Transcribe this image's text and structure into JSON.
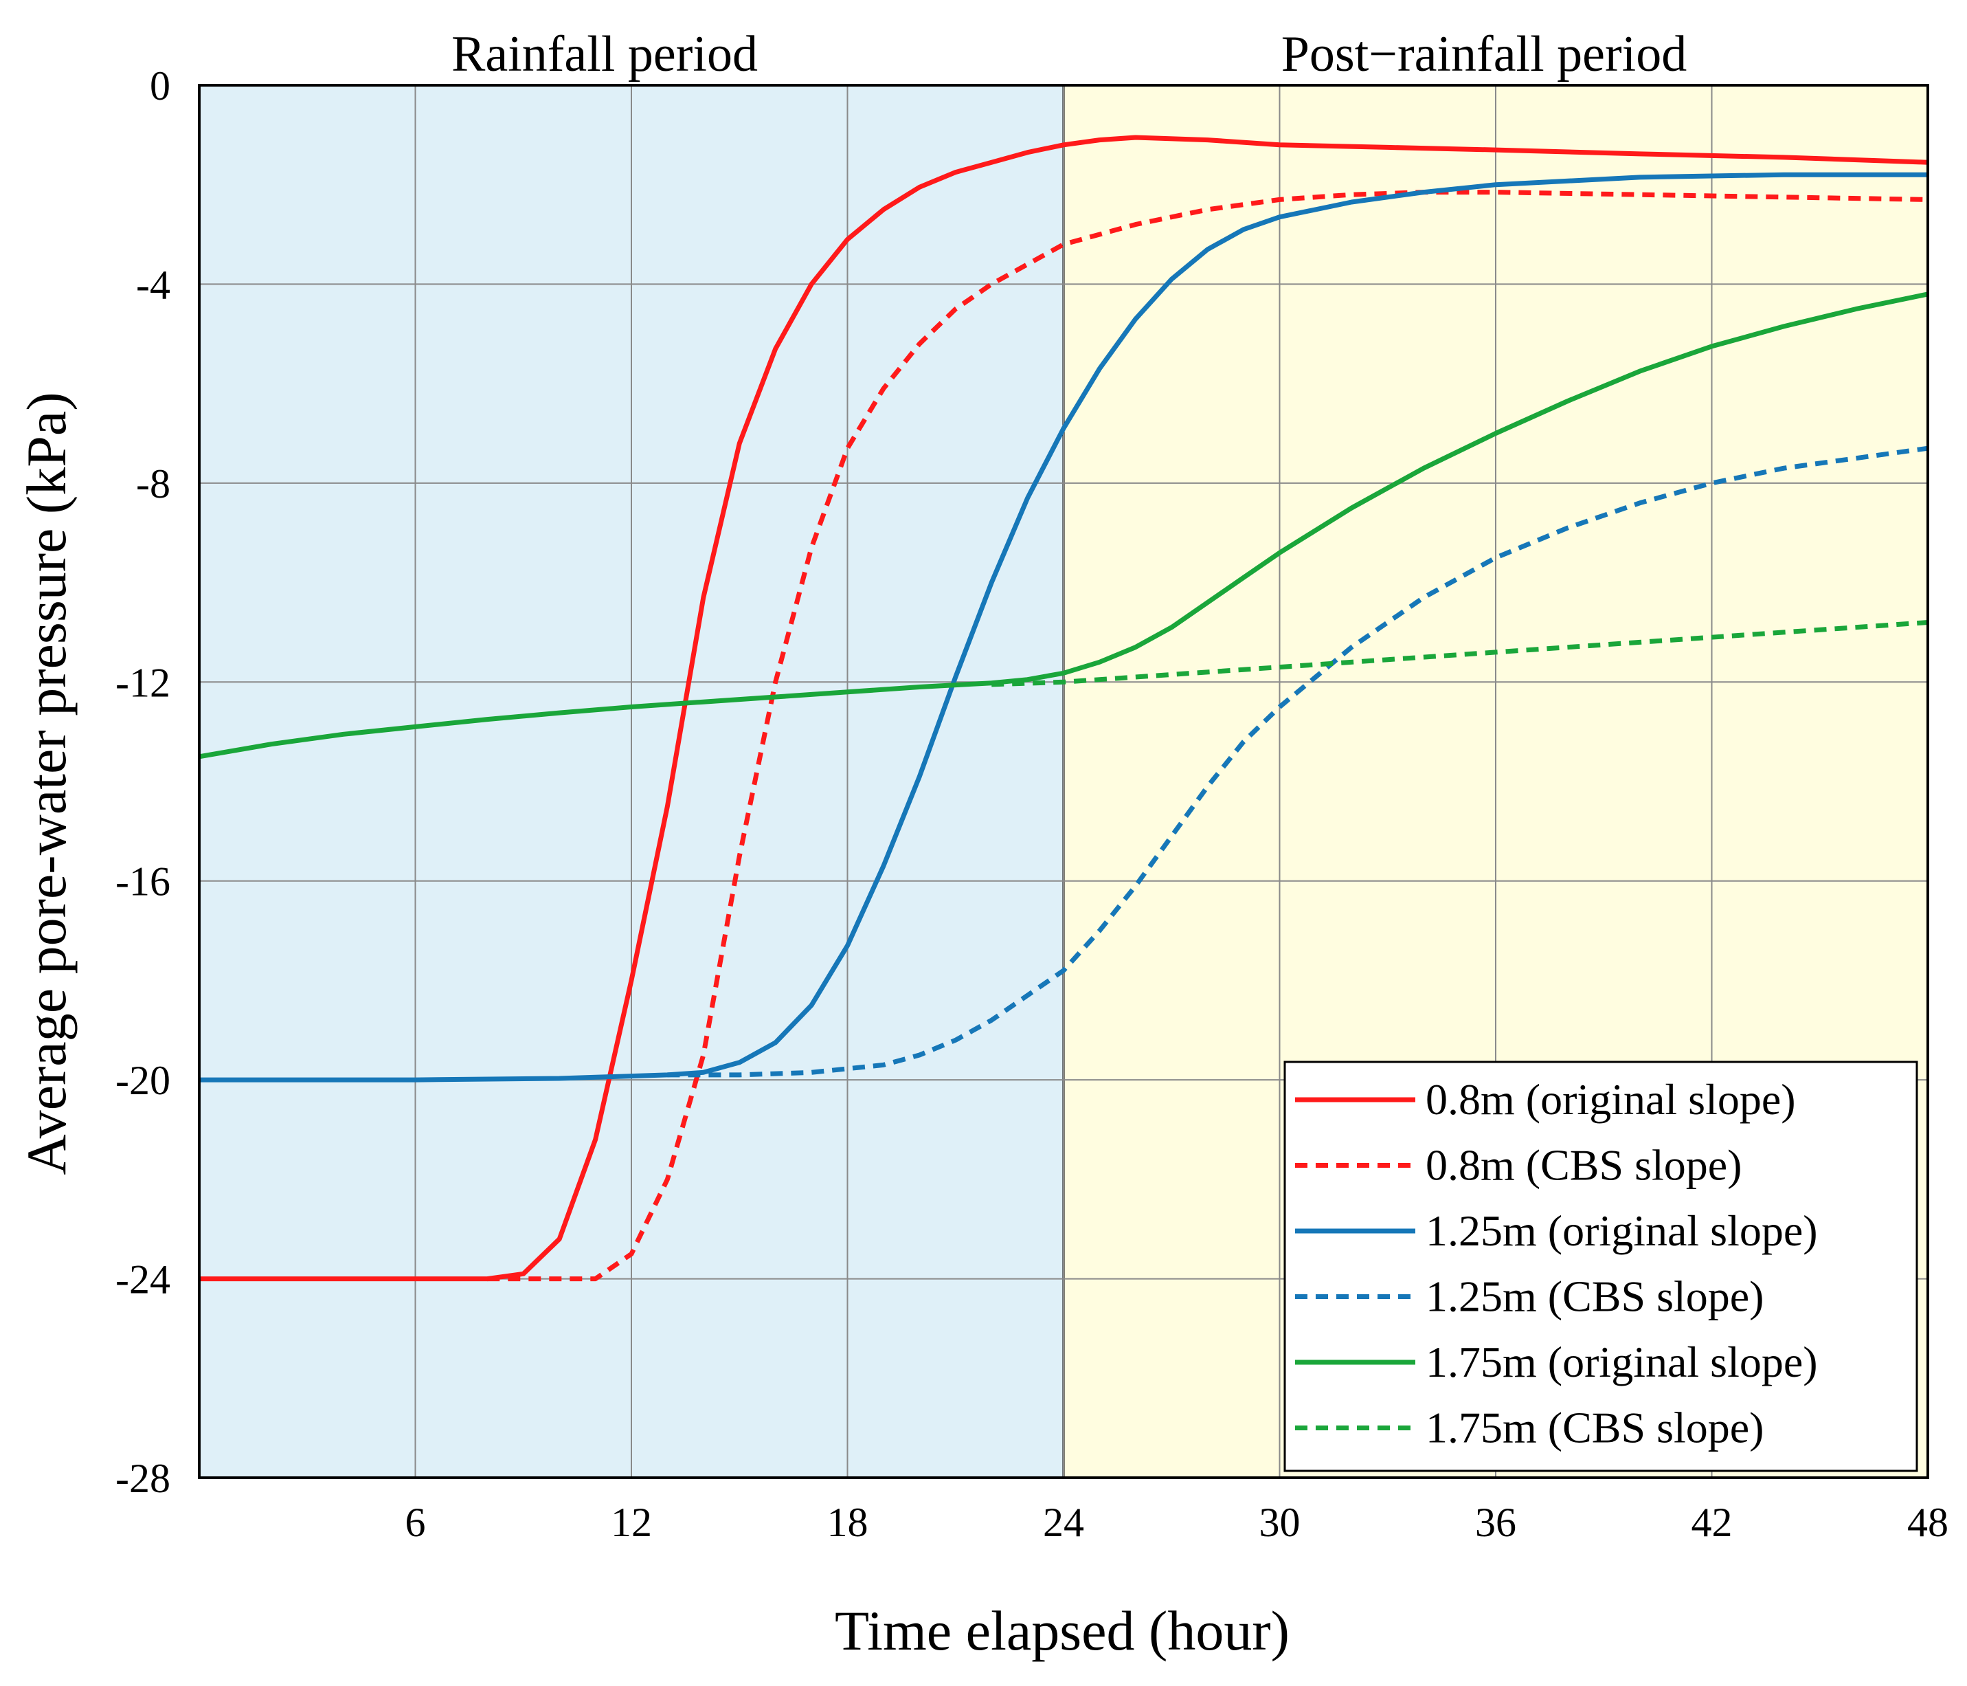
{
  "chart_data": {
    "type": "line",
    "xlabel": "Time elapsed (hour)",
    "ylabel": "Average pore-water pressure (kPa)",
    "xlim": [
      0,
      48
    ],
    "ylim": [
      -28,
      0
    ],
    "x_ticks": [
      6,
      12,
      18,
      24,
      30,
      36,
      42,
      48
    ],
    "y_ticks": [
      0,
      -4,
      -8,
      -12,
      -16,
      -20,
      -24,
      -28
    ],
    "grid": true,
    "legend_position": "bottom-right",
    "periods": [
      {
        "name": "rainfall",
        "label": "Rainfall period",
        "from": 0,
        "to": 24,
        "color": "#dff0f8"
      },
      {
        "name": "post-rainfall",
        "label": "Post−rainfall period",
        "from": 24,
        "to": 48,
        "color": "#fffde0"
      }
    ],
    "series": [
      {
        "name": "0.8m (original slope)",
        "color": "#ff1a1a",
        "dashed": false,
        "x": [
          0,
          7,
          8,
          9,
          10,
          11,
          12,
          13,
          14,
          15,
          16,
          17,
          18,
          19,
          20,
          21,
          22,
          23,
          24,
          25,
          26,
          28,
          30,
          33,
          36,
          40,
          44,
          48
        ],
        "y": [
          -24,
          -24,
          -24,
          -23.9,
          -23.2,
          -21.2,
          -18,
          -14.5,
          -10.3,
          -7.2,
          -5.3,
          -4,
          -3.1,
          -2.5,
          -2.05,
          -1.75,
          -1.55,
          -1.35,
          -1.2,
          -1.1,
          -1.05,
          -1.1,
          -1.2,
          -1.25,
          -1.3,
          -1.38,
          -1.45,
          -1.55
        ]
      },
      {
        "name": "0.8m (CBS slope)",
        "color": "#ff1a1a",
        "dashed": true,
        "x": [
          8,
          9,
          10,
          11,
          12,
          13,
          14,
          15,
          16,
          17,
          18,
          19,
          20,
          21,
          22,
          23,
          24,
          26,
          28,
          30,
          32,
          34,
          36,
          40,
          44,
          48
        ],
        "y": [
          -24,
          -24,
          -24,
          -24,
          -23.5,
          -22,
          -19.5,
          -15.5,
          -12,
          -9.3,
          -7.3,
          -6.1,
          -5.2,
          -4.5,
          -4,
          -3.6,
          -3.2,
          -2.8,
          -2.5,
          -2.3,
          -2.2,
          -2.15,
          -2.15,
          -2.2,
          -2.25,
          -2.3
        ]
      },
      {
        "name": "1.25m (original slope)",
        "color": "#1677b8",
        "dashed": false,
        "x": [
          0,
          6,
          10,
          13,
          14,
          15,
          16,
          17,
          18,
          19,
          20,
          21,
          22,
          23,
          24,
          25,
          26,
          27,
          28,
          29,
          30,
          32,
          34,
          36,
          40,
          44,
          48
        ],
        "y": [
          -20,
          -20,
          -19.97,
          -19.9,
          -19.85,
          -19.65,
          -19.25,
          -18.5,
          -17.3,
          -15.7,
          -13.9,
          -11.9,
          -10,
          -8.3,
          -6.9,
          -5.7,
          -4.7,
          -3.9,
          -3.3,
          -2.9,
          -2.65,
          -2.35,
          -2.15,
          -2,
          -1.85,
          -1.8,
          -1.8
        ]
      },
      {
        "name": "1.25m (CBS slope)",
        "color": "#1677b8",
        "dashed": true,
        "x": [
          13,
          15,
          17,
          19,
          20,
          21,
          22,
          23,
          24,
          25,
          26,
          27,
          28,
          29,
          30,
          31,
          32,
          33,
          34,
          36,
          38,
          40,
          42,
          44,
          46,
          48
        ],
        "y": [
          -19.9,
          -19.9,
          -19.85,
          -19.7,
          -19.5,
          -19.2,
          -18.8,
          -18.3,
          -17.8,
          -17,
          -16.1,
          -15.1,
          -14.1,
          -13.2,
          -12.5,
          -11.9,
          -11.3,
          -10.8,
          -10.3,
          -9.5,
          -8.9,
          -8.4,
          -8,
          -7.7,
          -7.5,
          -7.3
        ]
      },
      {
        "name": "1.75m (original slope)",
        "color": "#1aa63a",
        "dashed": false,
        "x": [
          0,
          2,
          4,
          6,
          8,
          10,
          12,
          14,
          16,
          18,
          20,
          22,
          23,
          24,
          25,
          26,
          27,
          28,
          29,
          30,
          32,
          34,
          36,
          38,
          40,
          42,
          44,
          46,
          48
        ],
        "y": [
          -13.5,
          -13.25,
          -13.05,
          -12.9,
          -12.75,
          -12.62,
          -12.5,
          -12.4,
          -12.3,
          -12.2,
          -12.1,
          -12.02,
          -11.95,
          -11.82,
          -11.6,
          -11.3,
          -10.9,
          -10.4,
          -9.9,
          -9.4,
          -8.5,
          -7.7,
          -7,
          -6.35,
          -5.75,
          -5.25,
          -4.85,
          -4.5,
          -4.2
        ]
      },
      {
        "name": "1.75m (CBS slope)",
        "color": "#1aa63a",
        "dashed": true,
        "x": [
          22,
          24,
          27,
          30,
          33,
          36,
          40,
          44,
          48
        ],
        "y": [
          -12.05,
          -12,
          -11.85,
          -11.7,
          -11.55,
          -11.4,
          -11.2,
          -11,
          -10.8
        ]
      }
    ]
  }
}
